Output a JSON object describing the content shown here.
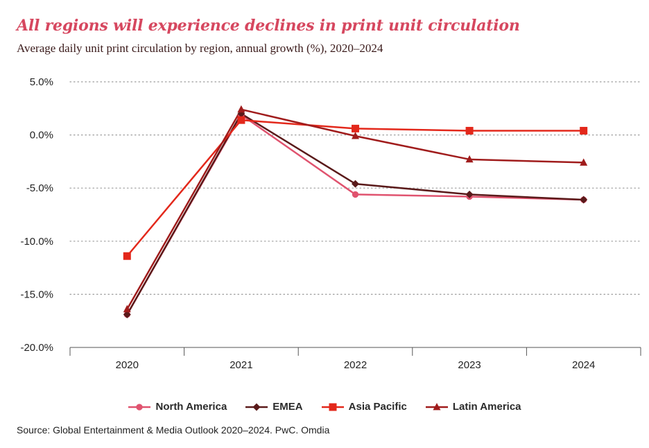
{
  "title": "All regions will experience declines in print unit circulation",
  "subtitle": "Average daily unit print circulation by region, annual growth (%), 2020–2024",
  "source": "Source: Global Entertainment & Media Outlook 2020–2024. PwC. Omdia",
  "chart_data": {
    "type": "line",
    "x": [
      "2020",
      "2021",
      "2022",
      "2023",
      "2024"
    ],
    "y_ticks": [
      "5.0%",
      "0.0%",
      "-5.0%",
      "-10.0%",
      "-15.0%",
      "-20.0%"
    ],
    "ylim": [
      -20,
      5
    ],
    "grid": "horizontal dotted",
    "legend_position": "bottom",
    "series": [
      {
        "name": "North America",
        "color": "#e0536f",
        "marker": "circle",
        "values": [
          -16.9,
          1.9,
          -5.6,
          -5.8,
          -6.1
        ]
      },
      {
        "name": "EMEA",
        "color": "#5a1a1a",
        "marker": "diamond",
        "values": [
          -16.9,
          2.0,
          -4.6,
          -5.6,
          -6.1
        ]
      },
      {
        "name": "Asia Pacific",
        "color": "#e3281b",
        "marker": "square",
        "values": [
          -11.4,
          1.4,
          0.6,
          0.4,
          0.4
        ]
      },
      {
        "name": "Latin America",
        "color": "#a01c1c",
        "marker": "triangle",
        "values": [
          -16.4,
          2.4,
          -0.1,
          -2.3,
          -2.6
        ]
      }
    ]
  }
}
